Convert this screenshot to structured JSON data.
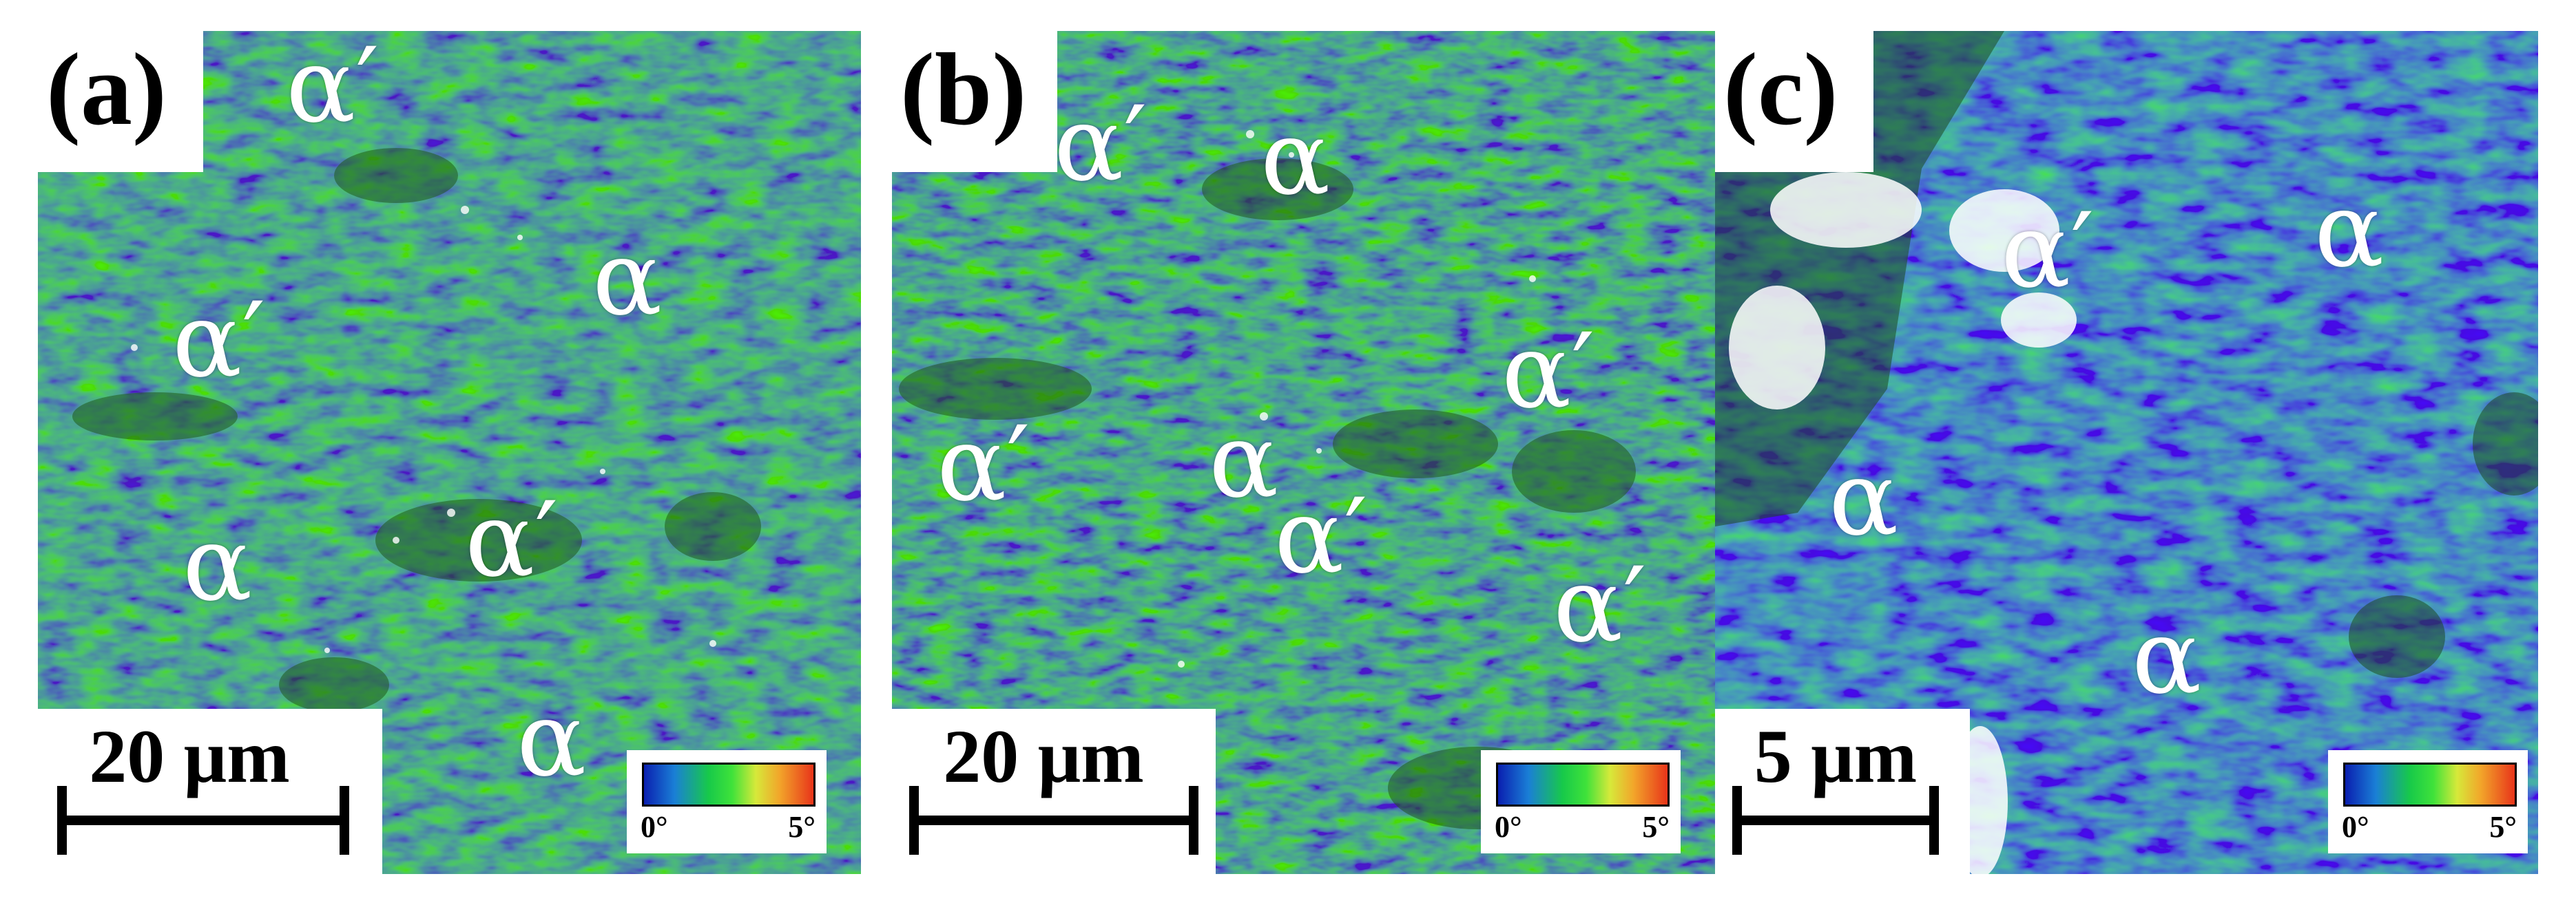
{
  "panels": [
    {
      "tag": "(a)",
      "phases": [
        "α′",
        "α",
        "α′",
        "α′",
        "α",
        "α"
      ],
      "scale": "20 μm",
      "legend": {
        "min": "0°",
        "max": "5°"
      }
    },
    {
      "tag": "(b)",
      "phases": [
        "α′",
        "α",
        "α′",
        "α′",
        "α",
        "α′",
        "α′"
      ],
      "scale": "20 μm",
      "legend": {
        "min": "0°",
        "max": "5°"
      }
    },
    {
      "tag": "(c)",
      "phases": [
        "α′",
        "α",
        "α",
        "α"
      ],
      "scale": "5 μm",
      "legend": {
        "min": "0°",
        "max": "5°"
      }
    }
  ],
  "colors": {
    "map_low": "#1b3fb0",
    "map_mid": "#2fbf2a",
    "map_high": "#e8341a",
    "background": "#ffffff"
  }
}
